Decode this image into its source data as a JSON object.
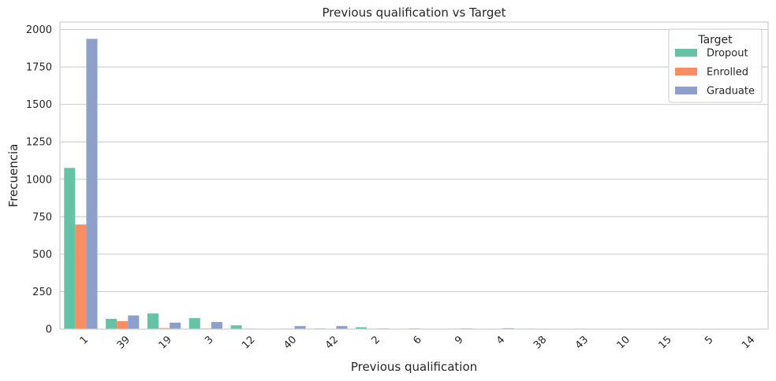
{
  "chart_data": {
    "type": "bar",
    "title": "Previous qualification vs Target",
    "xlabel": "Previous qualification",
    "ylabel": "Frecuencia",
    "ylim": [
      0,
      2000
    ],
    "yticks": [
      0,
      250,
      500,
      750,
      1000,
      1250,
      1500,
      1750,
      2000
    ],
    "grid": true,
    "legend_title": "Target",
    "legend_position": "top-right",
    "categories": [
      "1",
      "39",
      "19",
      "3",
      "12",
      "40",
      "42",
      "2",
      "6",
      "9",
      "4",
      "38",
      "43",
      "10",
      "15",
      "5",
      "14"
    ],
    "series": [
      {
        "name": "Dropout",
        "color": "#66c2a5",
        "values": [
          1076,
          68,
          104,
          73,
          25,
          3,
          4,
          12,
          0,
          1,
          0,
          3,
          0,
          1,
          1,
          0,
          0
        ]
      },
      {
        "name": "Enrolled",
        "color": "#fc8d62",
        "values": [
          698,
          53,
          7,
          4,
          3,
          3,
          0,
          1,
          4,
          3,
          0,
          0,
          3,
          0,
          0,
          0,
          1
        ]
      },
      {
        "name": "Graduate",
        "color": "#8da0cb",
        "values": [
          1938,
          91,
          43,
          47,
          3,
          20,
          20,
          4,
          1,
          4,
          6,
          1,
          1,
          0,
          1,
          1,
          0
        ]
      }
    ]
  }
}
